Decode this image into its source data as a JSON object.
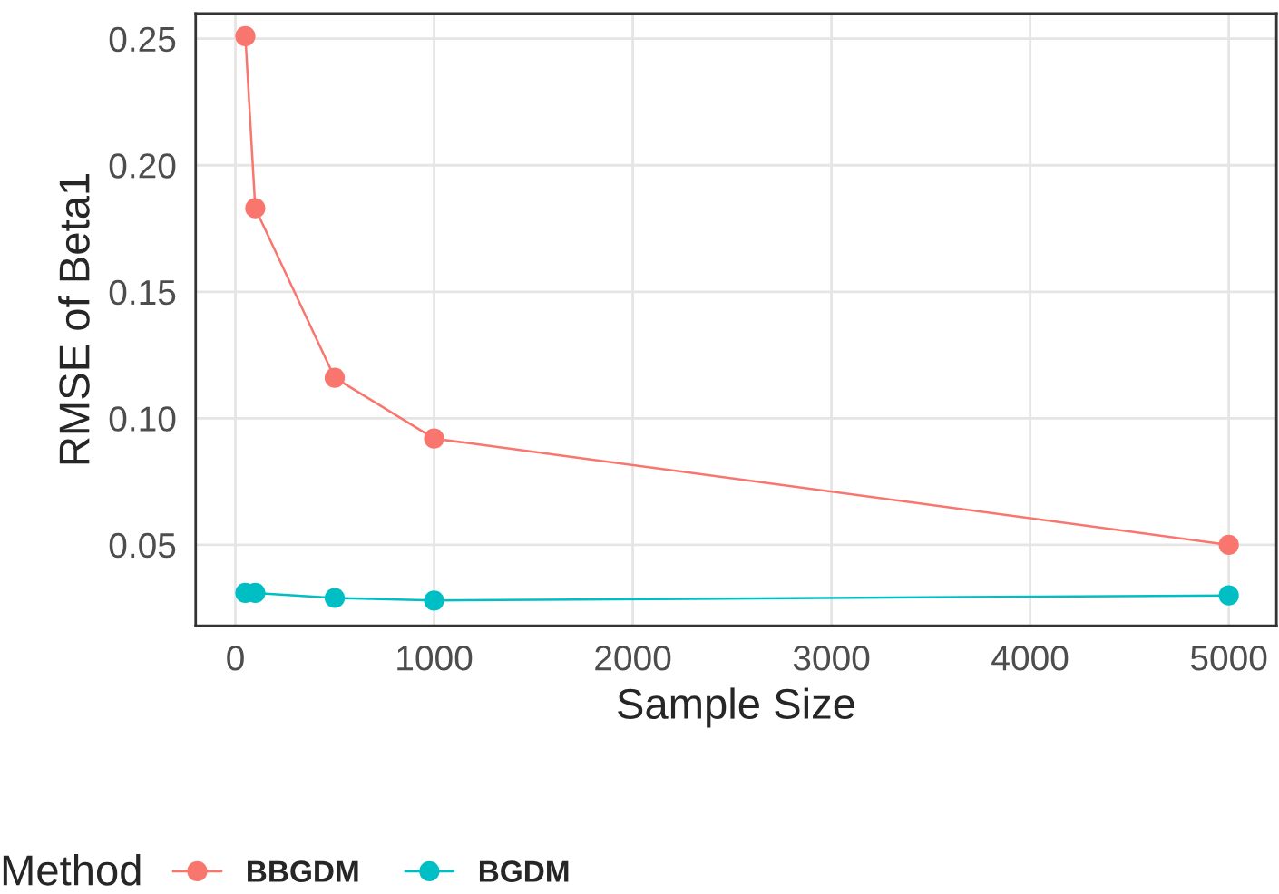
{
  "chart_data": {
    "type": "line",
    "xlabel": "Sample Size",
    "ylabel": "RMSE of Beta1",
    "legend_title": "Method",
    "x": [
      50,
      100,
      500,
      1000,
      5000
    ],
    "series": [
      {
        "name": "BBGDM",
        "color": "#f8766d",
        "values": [
          0.251,
          0.183,
          0.116,
          0.092,
          0.05
        ]
      },
      {
        "name": "BGDM",
        "color": "#00bfc4",
        "values": [
          0.031,
          0.031,
          0.029,
          0.028,
          0.03
        ]
      }
    ],
    "xlim": [
      -200,
      5240
    ],
    "ylim": [
      0.018,
      0.26
    ],
    "xticks": [
      0,
      1000,
      2000,
      3000,
      4000,
      5000
    ],
    "yticks": [
      {
        "value": 0.05,
        "label": "0.05"
      },
      {
        "value": 0.1,
        "label": "0.10"
      },
      {
        "value": 0.15,
        "label": "0.15"
      },
      {
        "value": 0.2,
        "label": "0.20"
      },
      {
        "value": 0.25,
        "label": "0.25"
      }
    ],
    "grid": true,
    "legend": "bottom",
    "marker": "circle",
    "line_style": "solid"
  }
}
